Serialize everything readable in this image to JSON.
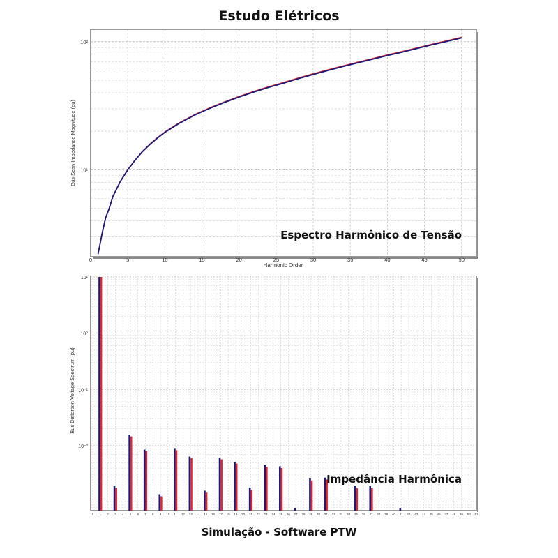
{
  "header": {
    "title": "Estudo Elétricos"
  },
  "footer": {
    "text": "Simulação - Software PTW"
  },
  "chart_data": [
    {
      "type": "line",
      "overlay_label": "Espectro Harmônico de Tensão",
      "xlabel": "Harmonic Order",
      "ylabel": "Bus Scan Impedance Magnitude (pu)",
      "xlim": [
        0,
        52
      ],
      "ylim": [
        2.1,
        125
      ],
      "yscale": "log",
      "xticks": [
        "0",
        "5",
        "10",
        "15",
        "20",
        "25",
        "30",
        "35",
        "40",
        "45",
        "50"
      ],
      "yticks": [
        {
          "label": "10¹",
          "value": 10
        },
        {
          "label": "10²",
          "value": 100
        }
      ],
      "grid": true,
      "colors": [
        "#1a1a7a",
        "#e0262f"
      ],
      "x": [
        1,
        1.5,
        2,
        2.5,
        3,
        4,
        5,
        6,
        7,
        8,
        9,
        10,
        12,
        14,
        16,
        18,
        20,
        22,
        24,
        26,
        28,
        30,
        32,
        34,
        36,
        38,
        40,
        42,
        44,
        46,
        48,
        50
      ],
      "series": [
        {
          "values": [
            2.2,
            3.1,
            4.2,
            5.0,
            6.2,
            8.1,
            10.0,
            11.9,
            13.9,
            15.8,
            17.7,
            19.6,
            23.2,
            26.7,
            30.1,
            33.5,
            37.0,
            40.5,
            44.0,
            47.5,
            51.5,
            55.5,
            59.7,
            64.0,
            68.4,
            73.0,
            78.0,
            83.0,
            88.5,
            94.5,
            100.5,
            107.0
          ]
        },
        {
          "values": [
            2.21,
            3.12,
            4.22,
            5.03,
            6.24,
            8.15,
            10.06,
            11.98,
            14.0,
            15.92,
            17.85,
            19.76,
            23.4,
            26.95,
            30.4,
            33.85,
            37.4,
            40.95,
            44.5,
            48.05,
            52.1,
            56.15,
            60.4,
            64.75,
            69.2,
            73.85,
            78.9,
            83.95,
            89.5,
            95.6,
            101.7,
            108.3
          ]
        }
      ]
    },
    {
      "type": "bar",
      "overlay_label": "Impedância Harmônica",
      "ylabel": "Bus Distortion Voltage Spectrum (pu)",
      "yscale": "log",
      "ylim": [
        0.0007,
        10
      ],
      "yticks": [
        {
          "label": "10¹",
          "value": 10
        },
        {
          "label": "10⁰",
          "value": 1
        },
        {
          "label": "10⁻¹",
          "value": 0.1
        },
        {
          "label": "10⁻²",
          "value": 0.01
        }
      ],
      "categories": [
        "0",
        "1",
        "2",
        "3",
        "4",
        "5",
        "6",
        "7",
        "8",
        "9",
        "10",
        "11",
        "12",
        "13",
        "14",
        "15",
        "16",
        "17",
        "18",
        "19",
        "20",
        "21",
        "22",
        "23",
        "24",
        "25",
        "26",
        "27",
        "28",
        "29",
        "30",
        "31",
        "32",
        "33",
        "34",
        "35",
        "36",
        "37",
        "38",
        "39",
        "40",
        "41",
        "42",
        "43",
        "44",
        "45",
        "46",
        "47",
        "48",
        "49",
        "50",
        "51"
      ],
      "grid": true,
      "colors": [
        "#1a1a7a",
        "#e0262f"
      ],
      "series": [
        {
          "values": [
            null,
            10,
            null,
            0.0019,
            null,
            0.0155,
            null,
            0.0085,
            null,
            0.00137,
            null,
            0.0088,
            null,
            0.0064,
            null,
            0.00158,
            null,
            0.0061,
            null,
            0.0051,
            null,
            0.00178,
            null,
            0.0045,
            null,
            0.0043,
            null,
            0.00078,
            null,
            0.0026,
            null,
            0.0027,
            null,
            null,
            null,
            0.0019,
            null,
            0.0019,
            null,
            null,
            null,
            0.00078,
            null,
            null,
            null,
            null,
            null,
            null,
            null,
            null,
            null,
            null
          ]
        },
        {
          "values": [
            null,
            10,
            null,
            0.00175,
            null,
            0.0146,
            null,
            0.008,
            null,
            0.00126,
            null,
            0.0083,
            null,
            0.006,
            null,
            0.00146,
            null,
            0.0057,
            null,
            0.0048,
            null,
            0.00163,
            null,
            0.0042,
            null,
            0.004,
            null,
            null,
            null,
            0.0024,
            null,
            0.0025,
            null,
            null,
            null,
            0.00175,
            null,
            0.00175,
            null,
            null,
            null,
            null,
            null,
            null,
            null,
            null,
            null,
            null,
            null,
            null,
            null,
            null
          ]
        }
      ]
    }
  ]
}
